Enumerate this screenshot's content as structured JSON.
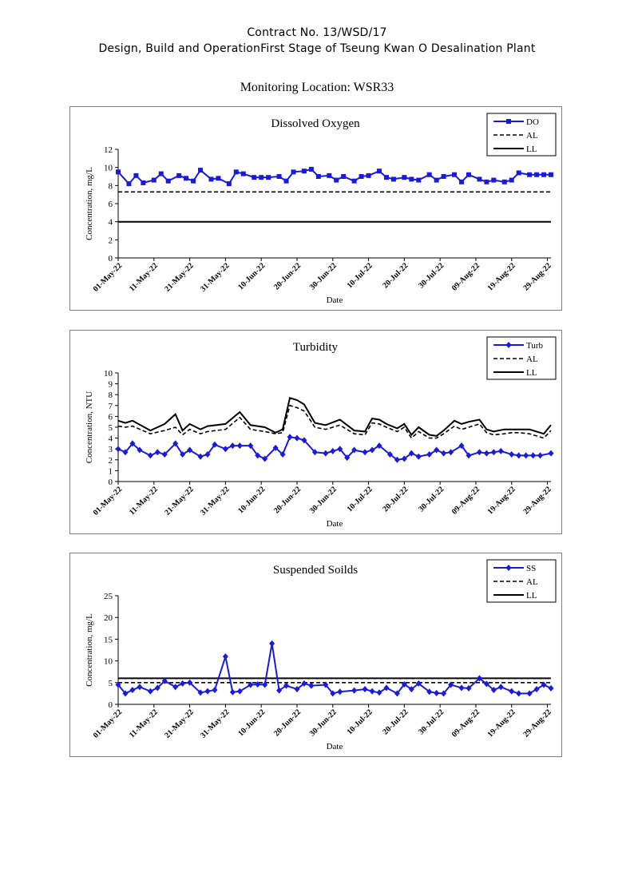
{
  "header": {
    "line1": "Contract No. 13/WSD/17",
    "line2": "Design, Build and OperationFirst Stage  of Tseung Kwan O Desalination Plant",
    "location": "Monitoring Location: WSR33"
  },
  "colors": {
    "data": "#1a1adc",
    "limit": "#000000",
    "frame": "#7f7f7f"
  },
  "dates": [
    "01-May-22",
    "11-May-22",
    "21-May-22",
    "31-May-22",
    "10-Jun-22",
    "20-Jun-22",
    "30-Jun-22",
    "10-Jul-22",
    "20-Jul-22",
    "30-Jul-22",
    "09-Aug-22",
    "19-Aug-22",
    "29-Aug-22"
  ],
  "chart_data": [
    {
      "type": "line",
      "title": "Dissolved Oxygen",
      "xlabel": "Date",
      "ylabel": "Concentration, mg/L",
      "ylim": [
        0,
        12
      ],
      "yticks": [
        0,
        2,
        4,
        6,
        8,
        10,
        12
      ],
      "xlim": [
        0,
        121
      ],
      "legend_position": "top-right",
      "marker": "square",
      "series": [
        {
          "name": "DO",
          "x": [
            0,
            3,
            5,
            7,
            10,
            12,
            14,
            17,
            19,
            21,
            23,
            26,
            28,
            31,
            33,
            35,
            38,
            40,
            42,
            45,
            47,
            49,
            52,
            54,
            56,
            59,
            61,
            63,
            66,
            68,
            70,
            73,
            75,
            77,
            80,
            82,
            84,
            87,
            89,
            91,
            94,
            96,
            98,
            101,
            103,
            105,
            108,
            110,
            112,
            115,
            117,
            119,
            121
          ],
          "y": [
            9.5,
            8.2,
            9.1,
            8.3,
            8.6,
            9.3,
            8.5,
            9.1,
            8.8,
            8.5,
            9.7,
            8.7,
            8.8,
            8.2,
            9.5,
            9.3,
            8.9,
            8.9,
            8.9,
            9.0,
            8.5,
            9.5,
            9.6,
            9.8,
            9.0,
            9.1,
            8.6,
            9.0,
            8.5,
            9.0,
            9.1,
            9.6,
            8.9,
            8.7,
            8.9,
            8.7,
            8.6,
            9.2,
            8.6,
            9.0,
            9.2,
            8.4,
            9.2,
            8.7,
            8.4,
            8.6,
            8.4,
            8.6,
            9.4,
            9.2,
            9.2,
            9.2,
            9.2
          ]
        },
        {
          "name": "AL",
          "x": [
            0,
            121
          ],
          "y": [
            7.3,
            7.3
          ]
        },
        {
          "name": "LL",
          "x": [
            0,
            121
          ],
          "y": [
            4,
            4
          ]
        }
      ]
    },
    {
      "type": "line",
      "title": "Turbidity",
      "xlabel": "Date",
      "ylabel": "Concentration, NTU",
      "ylim": [
        0,
        10
      ],
      "yticks": [
        0,
        1,
        2,
        3,
        4,
        5,
        6,
        7,
        8,
        9,
        10
      ],
      "xlim": [
        0,
        121
      ],
      "legend_position": "top-right",
      "marker": "diamond",
      "series": [
        {
          "name": "Turb",
          "x": [
            0,
            2,
            4,
            6,
            9,
            11,
            13,
            16,
            18,
            20,
            23,
            25,
            27,
            30,
            32,
            34,
            37,
            39,
            41,
            44,
            46,
            48,
            50,
            52,
            55,
            58,
            60,
            62,
            64,
            66,
            69,
            71,
            73,
            76,
            78,
            80,
            82,
            84,
            87,
            89,
            91,
            93,
            96,
            98,
            101,
            103,
            105,
            107,
            110,
            112,
            114,
            116,
            118,
            121
          ],
          "y": [
            3.0,
            2.7,
            3.5,
            2.9,
            2.4,
            2.7,
            2.5,
            3.5,
            2.5,
            2.9,
            2.3,
            2.5,
            3.4,
            3.0,
            3.3,
            3.3,
            3.3,
            2.4,
            2.1,
            3.1,
            2.5,
            4.1,
            4.0,
            3.8,
            2.7,
            2.6,
            2.8,
            3.0,
            2.2,
            2.9,
            2.7,
            2.9,
            3.3,
            2.5,
            2.0,
            2.1,
            2.6,
            2.3,
            2.5,
            2.9,
            2.6,
            2.7,
            3.3,
            2.4,
            2.7,
            2.6,
            2.7,
            2.8,
            2.5,
            2.4,
            2.4,
            2.4,
            2.4,
            2.6
          ]
        },
        {
          "name": "AL",
          "x": [
            0,
            2,
            4,
            9,
            13,
            16,
            18,
            20,
            23,
            25,
            30,
            34,
            37,
            41,
            44,
            46,
            48,
            50,
            52,
            55,
            58,
            62,
            66,
            69,
            71,
            73,
            75,
            78,
            80,
            82,
            84,
            87,
            89,
            91,
            94,
            96,
            98,
            101,
            103,
            105,
            108,
            110,
            112,
            115,
            119,
            121
          ],
          "y": [
            5.1,
            5.0,
            5.1,
            4.4,
            4.7,
            5.0,
            4.3,
            4.8,
            4.4,
            4.6,
            4.8,
            5.9,
            4.8,
            4.6,
            4.4,
            4.5,
            7.0,
            6.8,
            6.5,
            5.0,
            4.8,
            5.2,
            4.4,
            4.3,
            5.4,
            5.3,
            5.0,
            4.6,
            5.0,
            4.0,
            4.6,
            4.0,
            4.0,
            4.4,
            5.1,
            4.8,
            5.0,
            5.3,
            4.5,
            4.3,
            4.4,
            4.5,
            4.5,
            4.4,
            4.0,
            4.7
          ]
        },
        {
          "name": "LL",
          "x": [
            0,
            2,
            4,
            9,
            13,
            16,
            18,
            20,
            23,
            25,
            30,
            34,
            37,
            41,
            44,
            46,
            48,
            50,
            52,
            55,
            58,
            62,
            66,
            69,
            71,
            73,
            75,
            78,
            80,
            82,
            84,
            87,
            89,
            91,
            94,
            96,
            98,
            101,
            103,
            105,
            108,
            110,
            112,
            115,
            119,
            121
          ],
          "y": [
            5.6,
            5.4,
            5.6,
            4.7,
            5.3,
            6.2,
            4.7,
            5.3,
            4.8,
            5.1,
            5.3,
            6.4,
            5.2,
            5.0,
            4.5,
            4.8,
            7.7,
            7.5,
            7.1,
            5.4,
            5.2,
            5.7,
            4.7,
            4.6,
            5.8,
            5.7,
            5.3,
            4.9,
            5.3,
            4.3,
            5.0,
            4.3,
            4.2,
            4.7,
            5.6,
            5.3,
            5.5,
            5.7,
            4.8,
            4.6,
            4.8,
            4.8,
            4.8,
            4.8,
            4.4,
            5.2
          ]
        }
      ]
    },
    {
      "type": "line",
      "title": "Suspended Soilds",
      "xlabel": "Date",
      "ylabel": "Concentration, mg/L",
      "ylim": [
        0,
        25
      ],
      "yticks": [
        0,
        5,
        10,
        15,
        20,
        25
      ],
      "xlim": [
        0,
        121
      ],
      "legend_position": "top-right",
      "marker": "diamond",
      "series": [
        {
          "name": "SS",
          "x": [
            0,
            2,
            4,
            6,
            9,
            11,
            13,
            16,
            18,
            20,
            23,
            25,
            27,
            30,
            32,
            34,
            37,
            39,
            41,
            43,
            45,
            47,
            50,
            52,
            54,
            58,
            60,
            62,
            66,
            69,
            71,
            73,
            75,
            78,
            80,
            82,
            84,
            87,
            89,
            91,
            93,
            96,
            98,
            101,
            103,
            105,
            107,
            110,
            112,
            115,
            117,
            119,
            121
          ],
          "y": [
            4.5,
            2.5,
            3.3,
            4.0,
            3.0,
            3.8,
            5.4,
            4.0,
            4.8,
            5.0,
            2.7,
            3.0,
            3.3,
            11.0,
            2.8,
            3.0,
            4.5,
            4.6,
            4.5,
            14.0,
            3.2,
            4.3,
            3.5,
            4.8,
            4.3,
            4.5,
            2.5,
            2.9,
            3.2,
            3.5,
            3.0,
            2.7,
            3.8,
            2.5,
            4.6,
            3.5,
            4.8,
            2.9,
            2.6,
            2.5,
            4.5,
            3.8,
            3.7,
            6.0,
            4.7,
            3.3,
            4.0,
            3.0,
            2.5,
            2.5,
            3.5,
            4.5,
            3.7
          ]
        },
        {
          "name": "AL",
          "x": [
            0,
            121
          ],
          "y": [
            5,
            5
          ]
        },
        {
          "name": "LL",
          "x": [
            0,
            121
          ],
          "y": [
            6,
            6
          ]
        }
      ]
    }
  ]
}
